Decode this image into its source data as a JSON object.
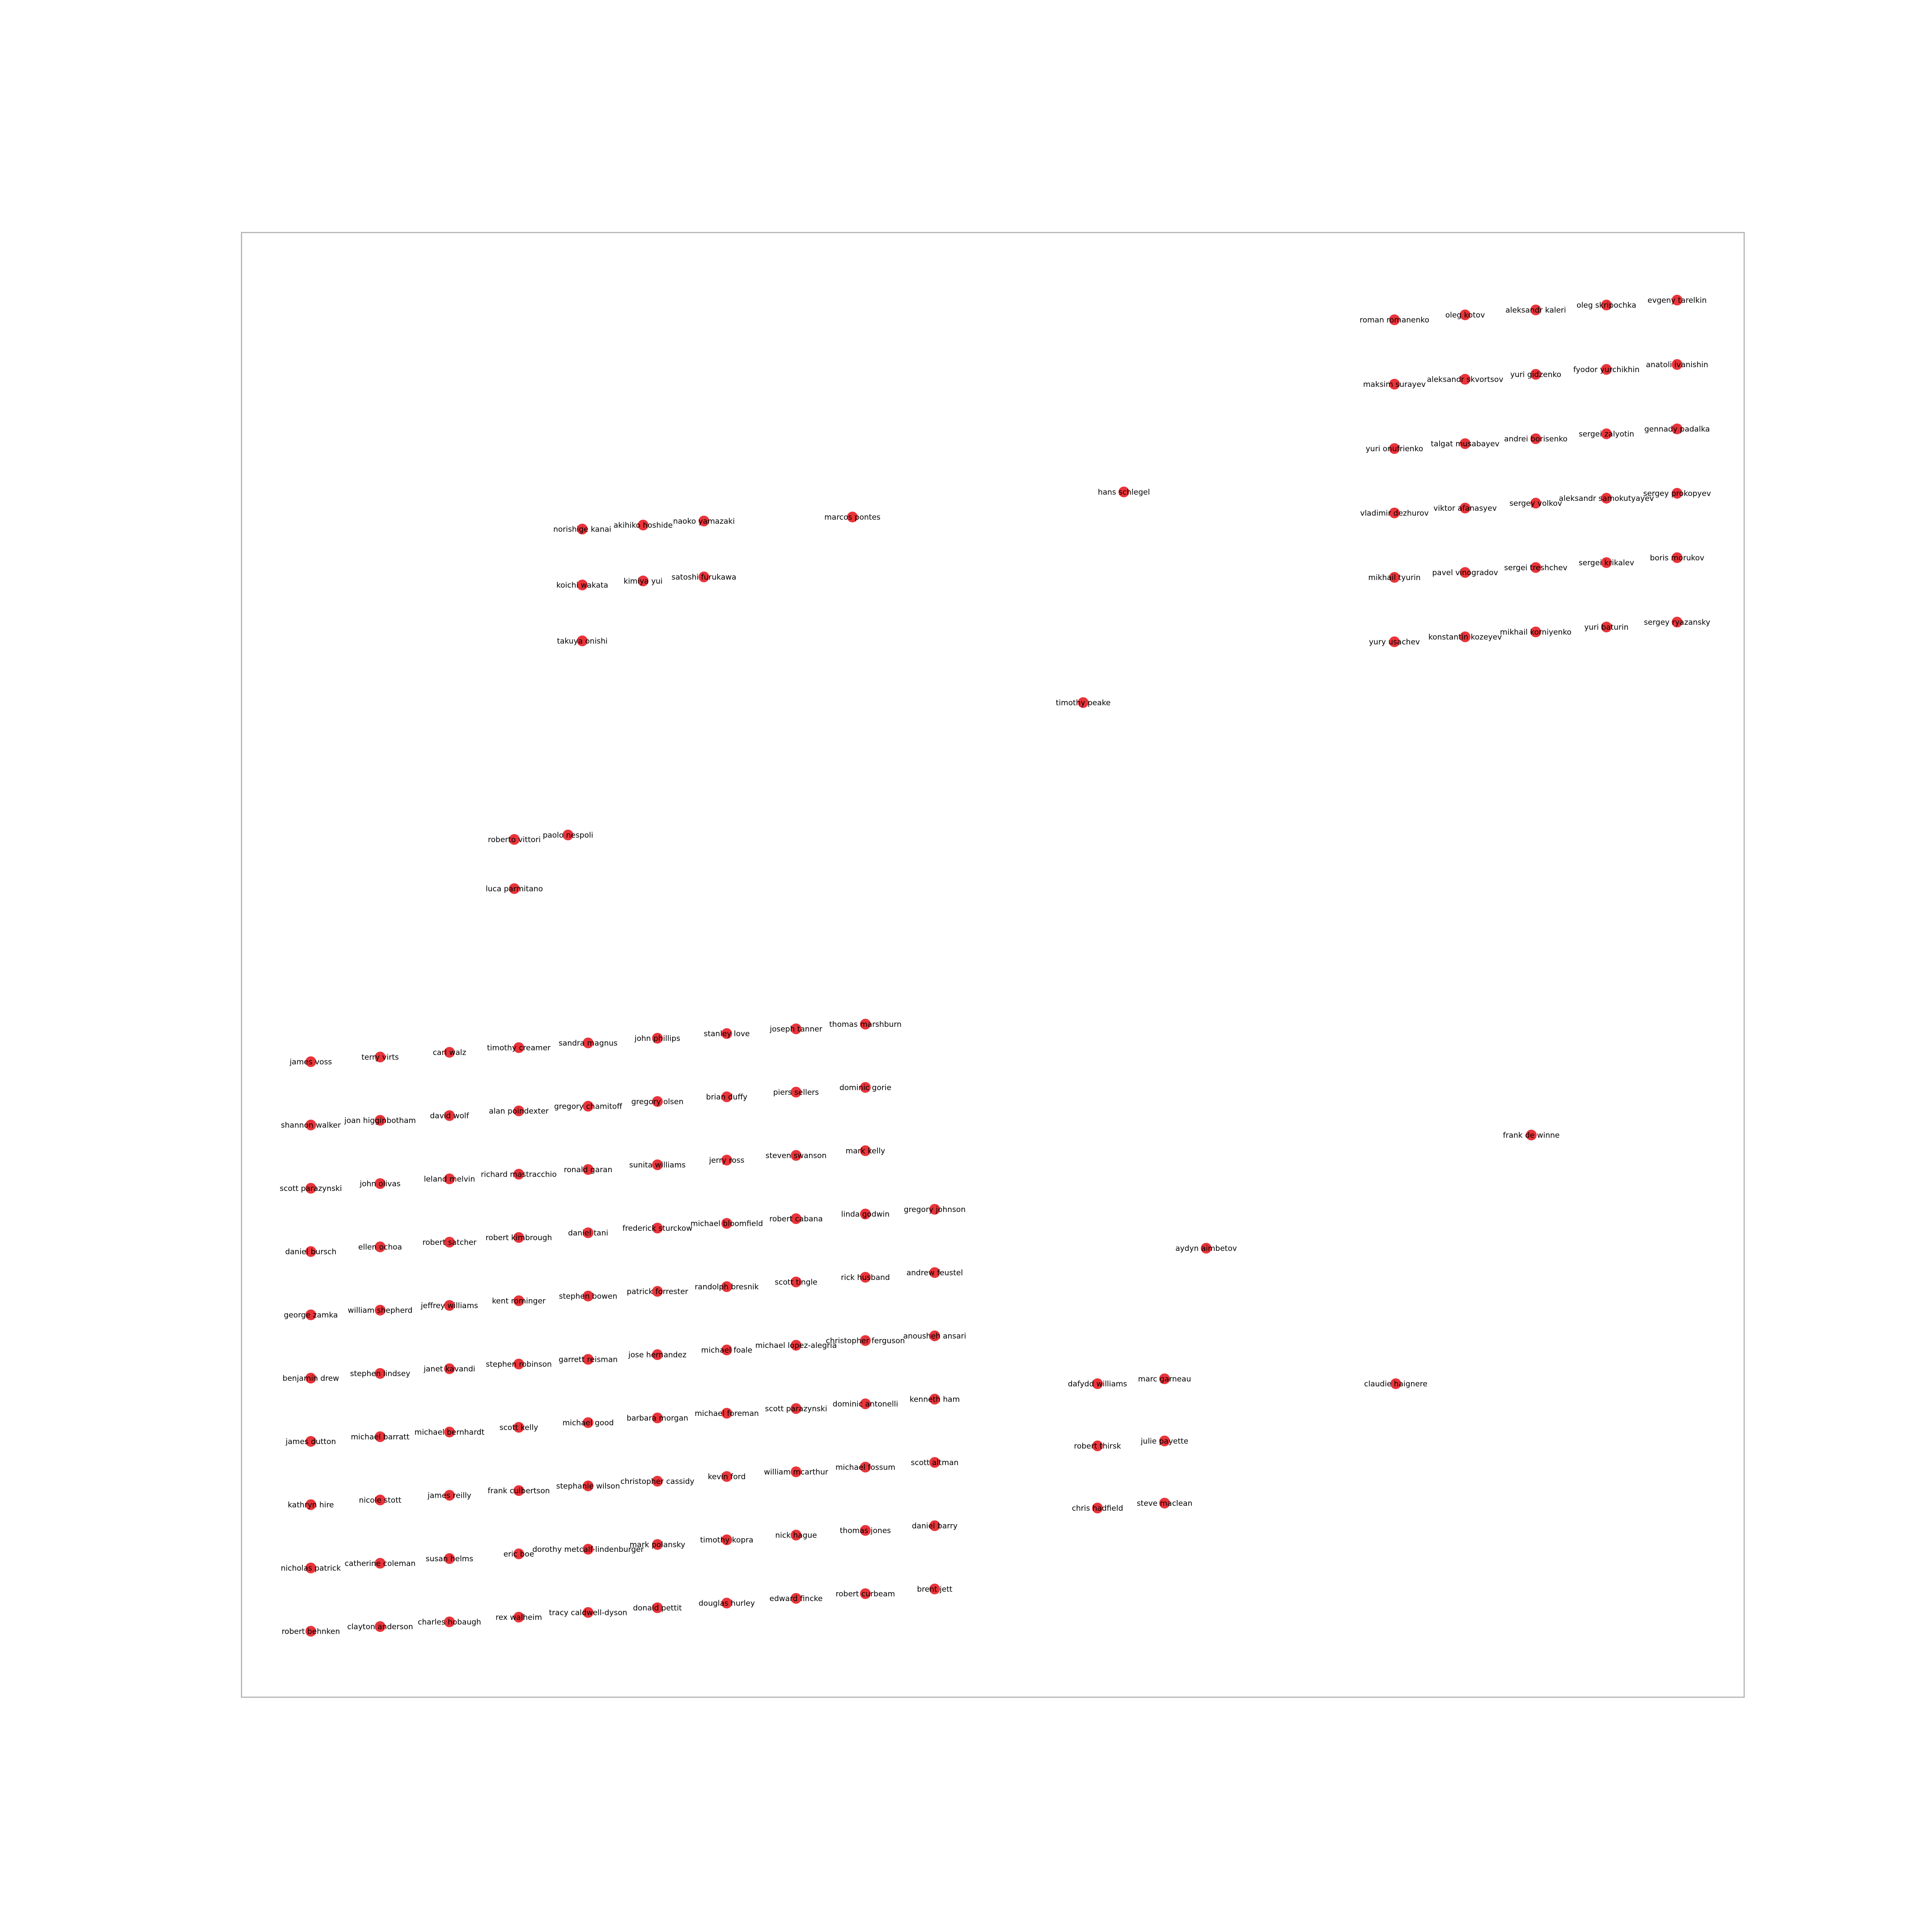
{
  "node_color": "#e8343a",
  "frame_color": "#b0b0b0",
  "groups": [
    {
      "name": "cluster-russian-cosmonauts",
      "columns": 5,
      "nodes": [
        "roman romanenko",
        "oleg kotov",
        "aleksandr kaleri",
        "oleg skripochka",
        "evgeny tarelkin",
        "maksim surayev",
        "aleksandr skvortsov",
        "yuri gidzenko",
        "fyodor yurchikhin",
        "anatoli ivanishin",
        "yuri onufrienko",
        "talgat musabayev",
        "andrei borisenko",
        "sergei zalyotin",
        "gennady padalka",
        "vladimir dezhurov",
        "viktor afanasyev",
        "sergey volkov",
        "aleksandr samokutyayev",
        "sergey prokopyev",
        "mikhail tyurin",
        "pavel vinogradov",
        "sergei treshchev",
        "sergei krikalev",
        "boris morukov",
        "yury usachev",
        "konstantin kozeyev",
        "mikhail korniyenko",
        "yuri baturin",
        "sergey ryazansky"
      ]
    },
    {
      "name": "cluster-japanese-astronauts",
      "columns": 3,
      "nodes": [
        "norishige kanai",
        "akihiko hoshide",
        "naoko yamazaki",
        "koichi wakata",
        "kimiya yui",
        "satoshi furukawa",
        "takuya onishi"
      ]
    },
    {
      "name": "cluster-italian-astronauts",
      "columns": 2,
      "nodes": [
        "roberto vittori",
        "paolo nespoli",
        "luca parmitano"
      ]
    },
    {
      "name": "cluster-canadian-astronauts",
      "columns": 2,
      "nodes": [
        "dafydd williams",
        "marc garneau",
        "robert thirsk",
        "julie payette",
        "chris hadfield",
        "steve maclean"
      ]
    },
    {
      "name": "cluster-american-astronauts",
      "columns": 10,
      "nodes": [
        "james voss",
        "shannon walker",
        "scott parazynski",
        "daniel bursch",
        "george zamka",
        "benjamin drew",
        "james dutton",
        "kathryn hire",
        "nicholas patrick",
        "robert behnken",
        "terry virts",
        "joan higginbotham",
        "john olivas",
        "ellen ochoa",
        "william shepherd",
        "stephen lindsey",
        "michael barratt",
        "nicole stott",
        "catherine coleman",
        "clayton anderson",
        "carl walz",
        "david wolf",
        "leland melvin",
        "robert satcher",
        "jeffrey williams",
        "janet kavandi",
        "michael bernhardt",
        "james reilly",
        "susan helms",
        "charles hobaugh",
        "timothy creamer",
        "alan poindexter",
        "richard mastracchio",
        "robert kimbrough",
        "kent rominger",
        "stephen robinson",
        "scott kelly",
        "frank culbertson",
        "eric boe",
        "rex walheim",
        "sandra magnus",
        "gregory chamitoff",
        "ronald garan",
        "daniel tani",
        "stephen bowen",
        "garrett reisman",
        "michael good",
        "stephanie wilson",
        "dorothy metcalf-lindenburger",
        "tracy caldwell-dyson",
        "john phillips",
        "gregory olsen",
        "sunita williams",
        "frederick sturckow",
        "patrick forrester",
        "jose hernandez",
        "barbara morgan",
        "christopher cassidy",
        "mark polansky",
        "donald pettit",
        "stanley love",
        "brian duffy",
        "jerry ross",
        "michael bloomfield",
        "randolph bresnik",
        "michael foale",
        "michael foreman",
        "kevin ford",
        "timothy kopra",
        "douglas hurley",
        "joseph tanner",
        "piers sellers",
        "steven swanson",
        "robert cabana",
        "scott tingle",
        "michael lopez-alegria",
        "scott parazynski",
        "william mcarthur",
        "nick hague",
        "edward fincke",
        "thomas marshburn",
        "dominic gorie",
        "mark kelly",
        "linda godwin",
        "rick husband",
        "christopher ferguson",
        "dominic antonelli",
        "michael fossum",
        "thomas jones",
        "robert curbeam",
        "",
        "",
        "",
        "gregory johnson",
        "andrew feustel",
        "anousheh ansari",
        "kenneth ham",
        "scott altman",
        "daniel barry",
        "brent jett"
      ]
    },
    {
      "name": "isolated-nodes",
      "columns": 1,
      "nodes": [
        "marcos pontes",
        "hans schlegel",
        "timothy peake",
        "frank de winne",
        "aydyn aimbetov",
        "claudie haignere"
      ]
    }
  ]
}
